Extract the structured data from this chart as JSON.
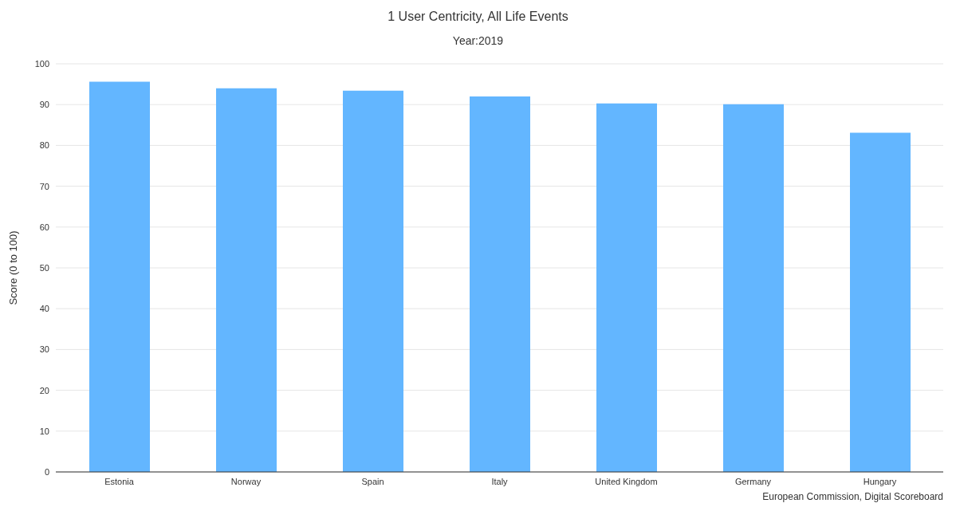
{
  "chart_data": {
    "type": "bar",
    "title": "1 User Centricity, All Life Events",
    "subtitle": "Year:2019",
    "ylabel": "Score (0 to 100)",
    "categories": [
      "Estonia",
      "Norway",
      "Spain",
      "Italy",
      "United Kingdom",
      "Germany",
      "Hungary"
    ],
    "values": [
      95.6,
      94.0,
      93.4,
      92.0,
      90.3,
      90.1,
      83.1
    ],
    "color": "#63b6ff",
    "ylim": [
      0,
      100
    ],
    "yticks": [
      0,
      10,
      20,
      30,
      40,
      50,
      60,
      70,
      80,
      90,
      100
    ],
    "grid": "y",
    "legend": false,
    "annotations": [
      "European Commission, Digital Scoreboard"
    ]
  }
}
